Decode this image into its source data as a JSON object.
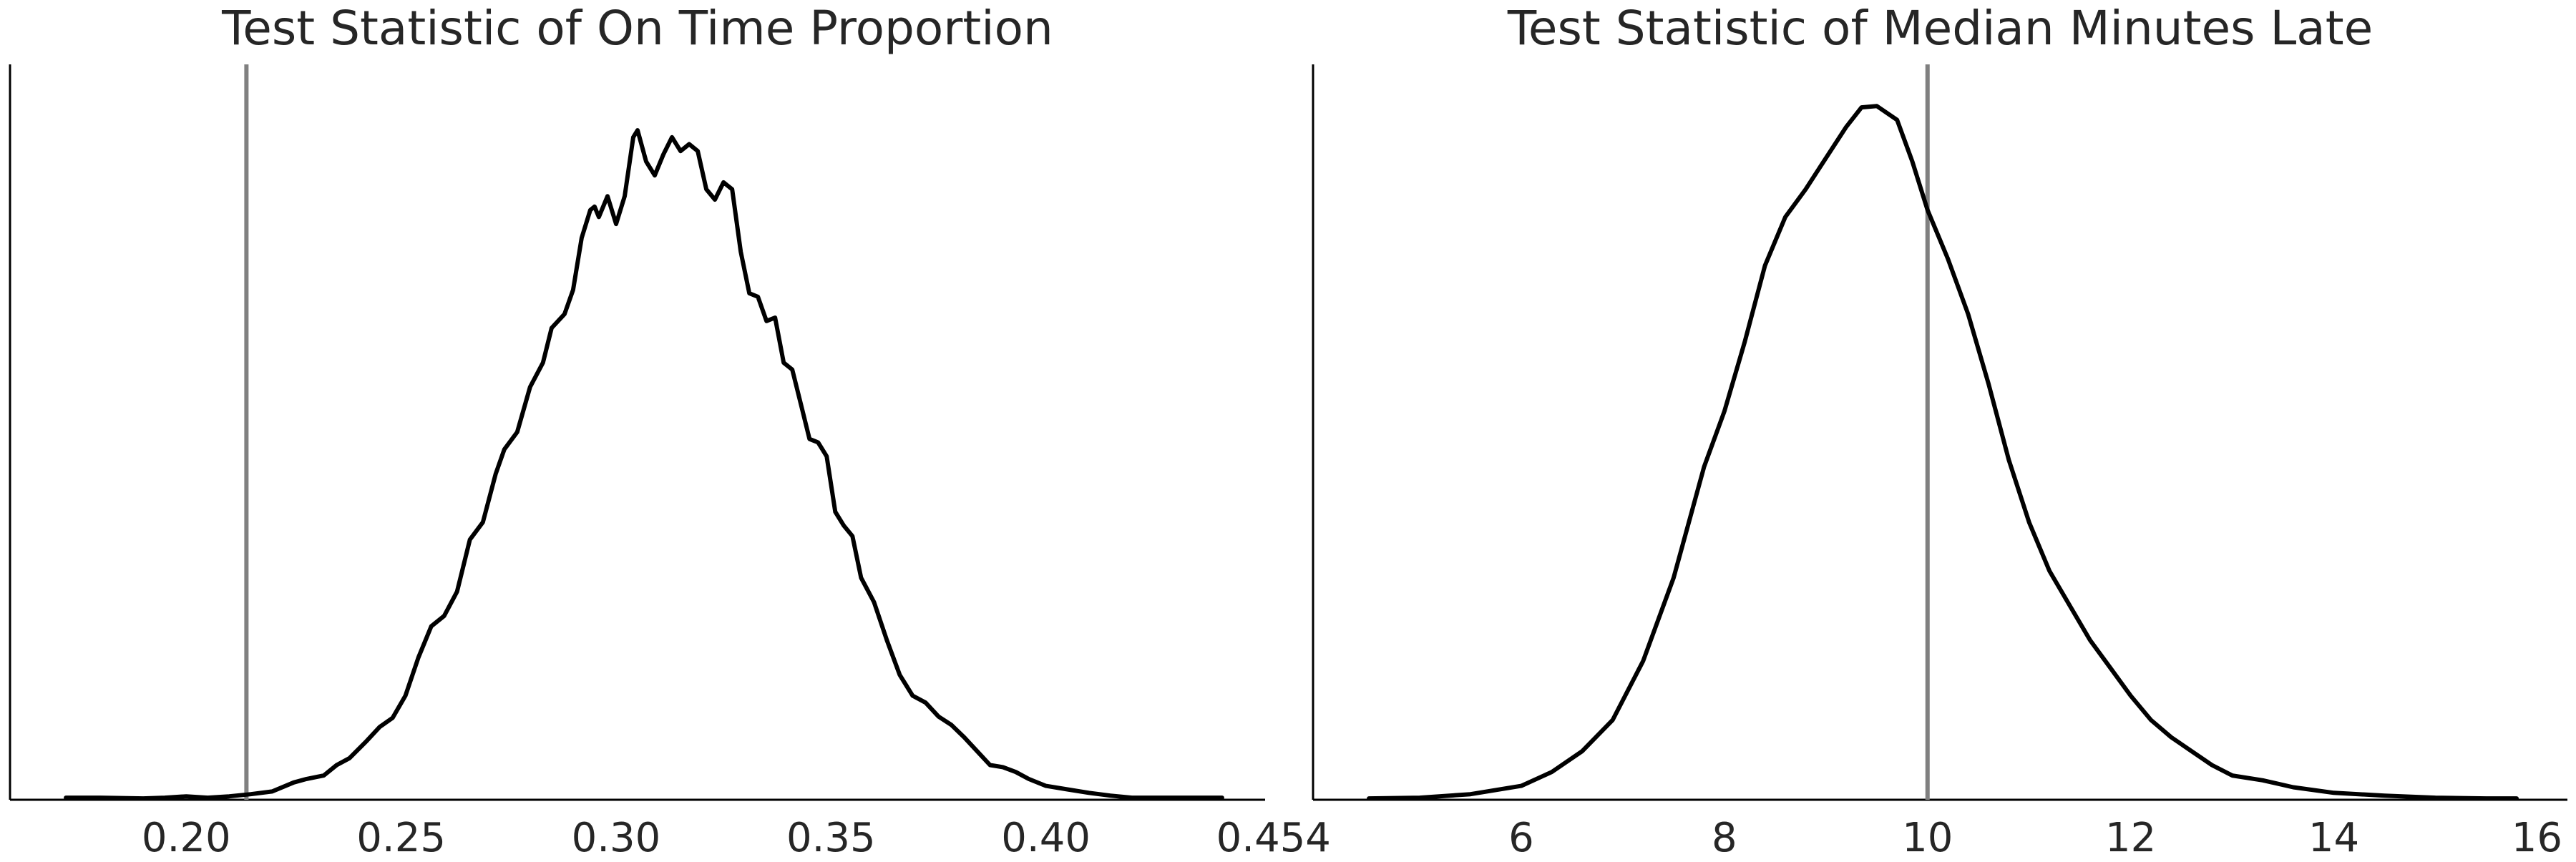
{
  "chart_data": [
    {
      "type": "line",
      "title": "Test Statistic of On Time Proportion",
      "xlabel": "",
      "ylabel": "",
      "xlim": [
        0.159,
        0.451
      ],
      "ylim": [
        0,
        1.06
      ],
      "grid": false,
      "x_ticks": [
        0.2,
        0.25,
        0.3,
        0.35,
        0.4,
        0.45
      ],
      "x_tick_labels": [
        "0.20",
        "0.25",
        "0.30",
        "0.35",
        "0.40",
        "0.45"
      ],
      "reference_line": {
        "x": 0.214,
        "color": "#808080"
      },
      "series": [
        {
          "color": "#000000",
          "points": [
            [
              0.172,
              0.003
            ],
            [
              0.18,
              0.003
            ],
            [
              0.19,
              0.002
            ],
            [
              0.195,
              0.003
            ],
            [
              0.2,
              0.005
            ],
            [
              0.205,
              0.003
            ],
            [
              0.21,
              0.005
            ],
            [
              0.215,
              0.008
            ],
            [
              0.22,
              0.012
            ],
            [
              0.225,
              0.025
            ],
            [
              0.228,
              0.03
            ],
            [
              0.232,
              0.035
            ],
            [
              0.235,
              0.05
            ],
            [
              0.238,
              0.06
            ],
            [
              0.242,
              0.085
            ],
            [
              0.245,
              0.105
            ],
            [
              0.248,
              0.118
            ],
            [
              0.251,
              0.15
            ],
            [
              0.254,
              0.205
            ],
            [
              0.257,
              0.25
            ],
            [
              0.26,
              0.265
            ],
            [
              0.263,
              0.3
            ],
            [
              0.266,
              0.375
            ],
            [
              0.269,
              0.4
            ],
            [
              0.272,
              0.47
            ],
            [
              0.274,
              0.505
            ],
            [
              0.277,
              0.53
            ],
            [
              0.28,
              0.595
            ],
            [
              0.283,
              0.63
            ],
            [
              0.285,
              0.68
            ],
            [
              0.288,
              0.7
            ],
            [
              0.29,
              0.735
            ],
            [
              0.292,
              0.81
            ],
            [
              0.294,
              0.85
            ],
            [
              0.295,
              0.855
            ],
            [
              0.296,
              0.84
            ],
            [
              0.298,
              0.87
            ],
            [
              0.3,
              0.83
            ],
            [
              0.302,
              0.87
            ],
            [
              0.304,
              0.955
            ],
            [
              0.305,
              0.965
            ],
            [
              0.307,
              0.92
            ],
            [
              0.309,
              0.9
            ],
            [
              0.311,
              0.93
            ],
            [
              0.313,
              0.955
            ],
            [
              0.315,
              0.935
            ],
            [
              0.317,
              0.945
            ],
            [
              0.319,
              0.935
            ],
            [
              0.321,
              0.88
            ],
            [
              0.323,
              0.865
            ],
            [
              0.325,
              0.89
            ],
            [
              0.327,
              0.88
            ],
            [
              0.329,
              0.79
            ],
            [
              0.331,
              0.73
            ],
            [
              0.333,
              0.725
            ],
            [
              0.335,
              0.69
            ],
            [
              0.337,
              0.695
            ],
            [
              0.339,
              0.63
            ],
            [
              0.341,
              0.62
            ],
            [
              0.343,
              0.57
            ],
            [
              0.345,
              0.52
            ],
            [
              0.347,
              0.515
            ],
            [
              0.349,
              0.495
            ],
            [
              0.351,
              0.415
            ],
            [
              0.353,
              0.395
            ],
            [
              0.355,
              0.38
            ],
            [
              0.357,
              0.32
            ],
            [
              0.36,
              0.285
            ],
            [
              0.363,
              0.23
            ],
            [
              0.366,
              0.18
            ],
            [
              0.369,
              0.15
            ],
            [
              0.372,
              0.14
            ],
            [
              0.375,
              0.12
            ],
            [
              0.378,
              0.108
            ],
            [
              0.381,
              0.09
            ],
            [
              0.384,
              0.07
            ],
            [
              0.387,
              0.05
            ],
            [
              0.39,
              0.047
            ],
            [
              0.393,
              0.04
            ],
            [
              0.396,
              0.03
            ],
            [
              0.4,
              0.02
            ],
            [
              0.405,
              0.015
            ],
            [
              0.41,
              0.01
            ],
            [
              0.415,
              0.006
            ],
            [
              0.42,
              0.003
            ],
            [
              0.425,
              0.003
            ],
            [
              0.43,
              0.003
            ],
            [
              0.435,
              0.003
            ],
            [
              0.441,
              0.003
            ]
          ]
        }
      ]
    },
    {
      "type": "line",
      "title": "Test Statistic of Median Minutes Late",
      "xlabel": "",
      "ylabel": "",
      "xlim": [
        3.95,
        16.3
      ],
      "ylim": [
        0,
        1.06
      ],
      "grid": false,
      "x_ticks": [
        4,
        6,
        8,
        10,
        12,
        14,
        16
      ],
      "x_tick_labels": [
        "4",
        "6",
        "8",
        "10",
        "12",
        "14",
        "16"
      ],
      "reference_line": {
        "x": 10,
        "color": "#808080"
      },
      "series": [
        {
          "color": "#000000",
          "points": [
            [
              4.5,
              0.002
            ],
            [
              5.0,
              0.003
            ],
            [
              5.5,
              0.008
            ],
            [
              6.0,
              0.02
            ],
            [
              6.3,
              0.04
            ],
            [
              6.6,
              0.07
            ],
            [
              6.9,
              0.115
            ],
            [
              7.2,
              0.2
            ],
            [
              7.5,
              0.32
            ],
            [
              7.8,
              0.48
            ],
            [
              8.0,
              0.56
            ],
            [
              8.2,
              0.66
            ],
            [
              8.4,
              0.77
            ],
            [
              8.6,
              0.84
            ],
            [
              8.8,
              0.88
            ],
            [
              9.0,
              0.925
            ],
            [
              9.2,
              0.97
            ],
            [
              9.35,
              0.998
            ],
            [
              9.5,
              1.0
            ],
            [
              9.7,
              0.98
            ],
            [
              9.85,
              0.92
            ],
            [
              10.0,
              0.85
            ],
            [
              10.2,
              0.78
            ],
            [
              10.4,
              0.7
            ],
            [
              10.6,
              0.6
            ],
            [
              10.8,
              0.49
            ],
            [
              11.0,
              0.4
            ],
            [
              11.2,
              0.33
            ],
            [
              11.4,
              0.28
            ],
            [
              11.6,
              0.23
            ],
            [
              11.8,
              0.19
            ],
            [
              12.0,
              0.15
            ],
            [
              12.2,
              0.115
            ],
            [
              12.4,
              0.09
            ],
            [
              12.6,
              0.07
            ],
            [
              12.8,
              0.05
            ],
            [
              13.0,
              0.035
            ],
            [
              13.3,
              0.028
            ],
            [
              13.6,
              0.018
            ],
            [
              14.0,
              0.01
            ],
            [
              14.5,
              0.006
            ],
            [
              15.0,
              0.003
            ],
            [
              15.5,
              0.002
            ],
            [
              15.8,
              0.002
            ]
          ]
        }
      ]
    }
  ]
}
